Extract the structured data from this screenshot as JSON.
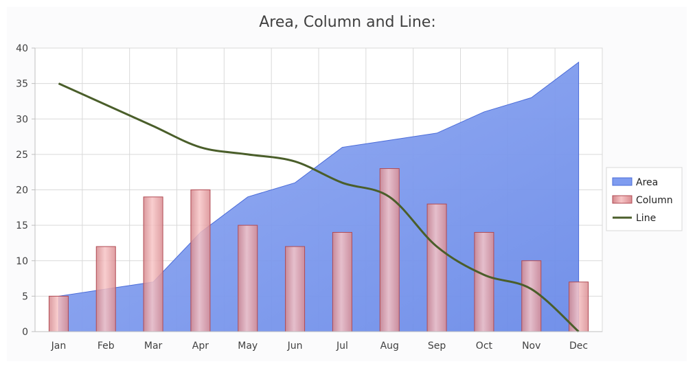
{
  "chart_data": {
    "type": "combo",
    "title": "Area, Column and Line:",
    "categories": [
      "Jan",
      "Feb",
      "Mar",
      "Apr",
      "May",
      "Jun",
      "Jul",
      "Aug",
      "Sep",
      "Oct",
      "Nov",
      "Dec"
    ],
    "ylim": [
      0,
      40
    ],
    "yticks": [
      0,
      5,
      10,
      15,
      20,
      25,
      30,
      35,
      40
    ],
    "grid": true,
    "legend_position": "right",
    "series": [
      {
        "name": "Area",
        "type": "area",
        "color": "#6f8ff0",
        "values": [
          5,
          6,
          7,
          14,
          19,
          21,
          26,
          27,
          28,
          31,
          33,
          38
        ]
      },
      {
        "name": "Column",
        "type": "bar",
        "color": "#e89a9e",
        "values": [
          5,
          12,
          19,
          20,
          15,
          12,
          14,
          23,
          18,
          14,
          10,
          7
        ]
      },
      {
        "name": "Line",
        "type": "line",
        "color": "#4a5e2a",
        "values": [
          35,
          32,
          29,
          26,
          25,
          24,
          21,
          19,
          12,
          8,
          6,
          0
        ]
      }
    ]
  }
}
